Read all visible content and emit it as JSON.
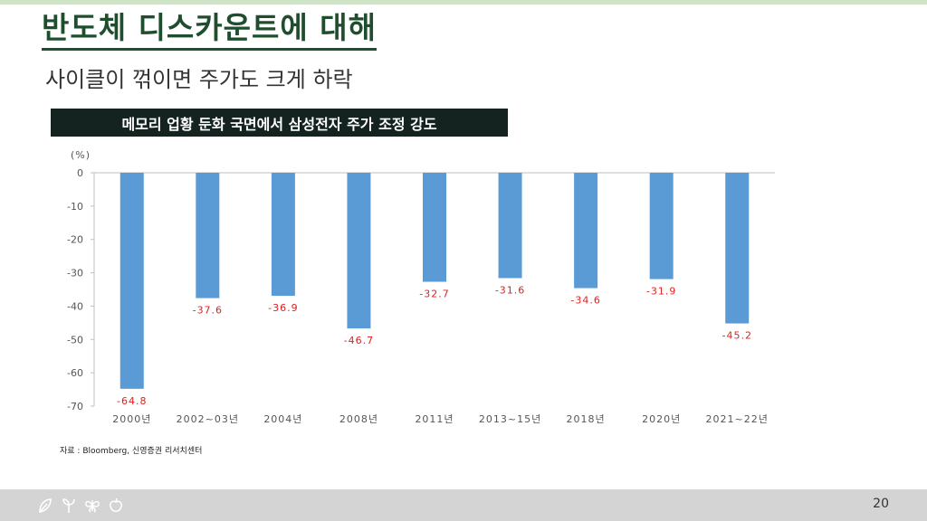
{
  "title": "반도체 디스카운트에 대해",
  "subtitle": "사이클이 꺾이면 주가도 크게 하락",
  "chart_banner": "메모리 업황 둔화 국면에서 삼성전자 주가 조정 강도",
  "source": "자료 : Bloomberg, 신영증권 리서치센터",
  "page_number": "20",
  "footer_icons": [
    "leaf-icon",
    "sprout-icon",
    "butterfly-icon",
    "apple-icon"
  ],
  "colors": {
    "bar": "#5b9bd5",
    "data_label": "#e02020",
    "title": "#1f4e2e",
    "banner_bg": "#142320"
  },
  "chart_data": {
    "type": "bar",
    "unit": "(%)",
    "categories": [
      "2000년",
      "2002~03년",
      "2004년",
      "2008년",
      "2011년",
      "2013~15년",
      "2018년",
      "2020년",
      "2021~22년"
    ],
    "values": [
      -64.8,
      -37.6,
      -36.9,
      -46.7,
      -32.7,
      -31.6,
      -34.6,
      -31.9,
      -45.2
    ],
    "data_labels": [
      "-64.8",
      "-37.6",
      "-36.9",
      "-46.7",
      "-32.7",
      "-31.6",
      "-34.6",
      "-31.9",
      "-45.2"
    ],
    "ylim": [
      -70,
      0
    ],
    "yticks": [
      "0",
      "-10",
      "-20",
      "-30",
      "-40",
      "-50",
      "-60",
      "-70"
    ],
    "ytick_values": [
      0,
      -10,
      -20,
      -30,
      -40,
      -50,
      -60,
      -70
    ],
    "grid": false
  }
}
